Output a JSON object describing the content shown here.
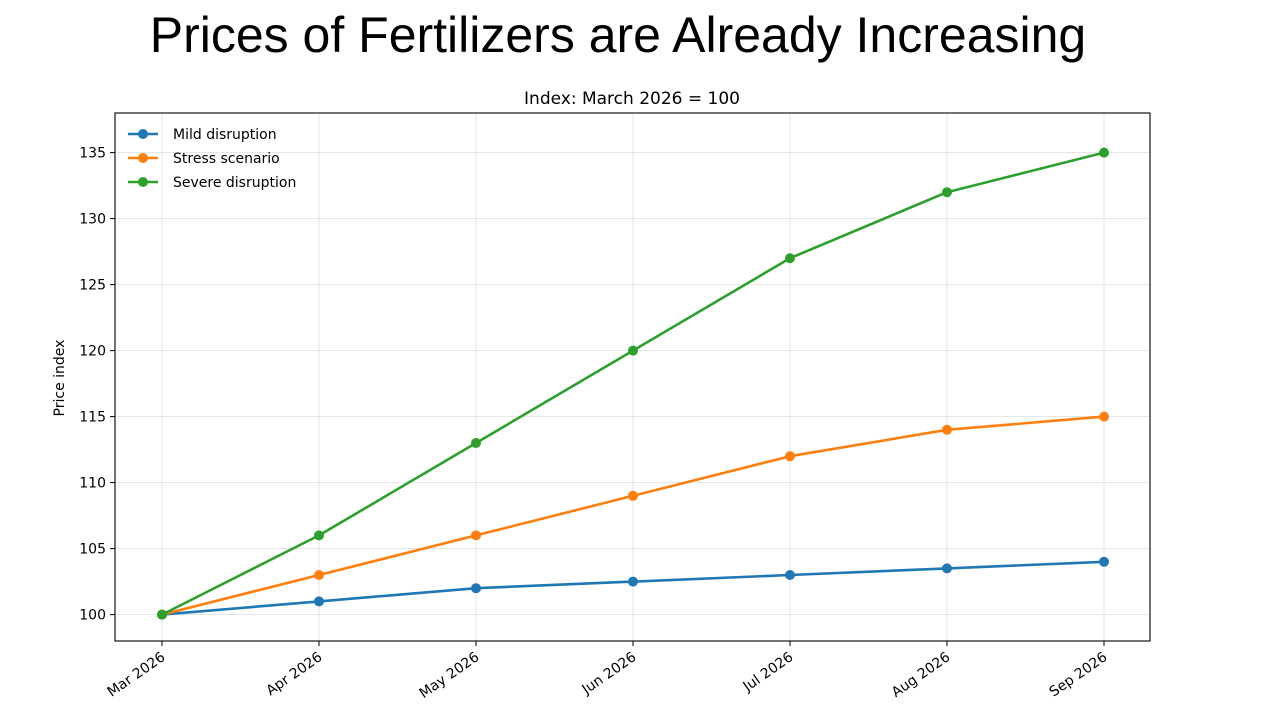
{
  "slide": {
    "title": "Prices of Fertilizers are Already Increasing"
  },
  "chart_data": {
    "type": "line",
    "title": "Index: March 2026 = 100",
    "xlabel": "",
    "ylabel": "Price index",
    "categories": [
      "Mar 2026",
      "Apr 2026",
      "May 2026",
      "Jun 2026",
      "Jul 2026",
      "Aug 2026",
      "Sep 2026"
    ],
    "ylim": [
      98.0,
      138.0
    ],
    "yticks": [
      100,
      105,
      110,
      115,
      120,
      125,
      130,
      135
    ],
    "grid": true,
    "legend_position": "top-left",
    "markers": true,
    "series": [
      {
        "name": "Mild disruption",
        "color": "#1f77b4",
        "values": [
          100,
          101,
          102,
          102.5,
          103,
          103.5,
          104
        ]
      },
      {
        "name": "Stress scenario",
        "color": "#ff7f0e",
        "values": [
          100,
          103,
          106,
          109,
          112,
          114,
          115
        ]
      },
      {
        "name": "Severe disruption",
        "color": "#2ca02c",
        "values": [
          100,
          106,
          113,
          120,
          127,
          132,
          135
        ]
      }
    ]
  }
}
